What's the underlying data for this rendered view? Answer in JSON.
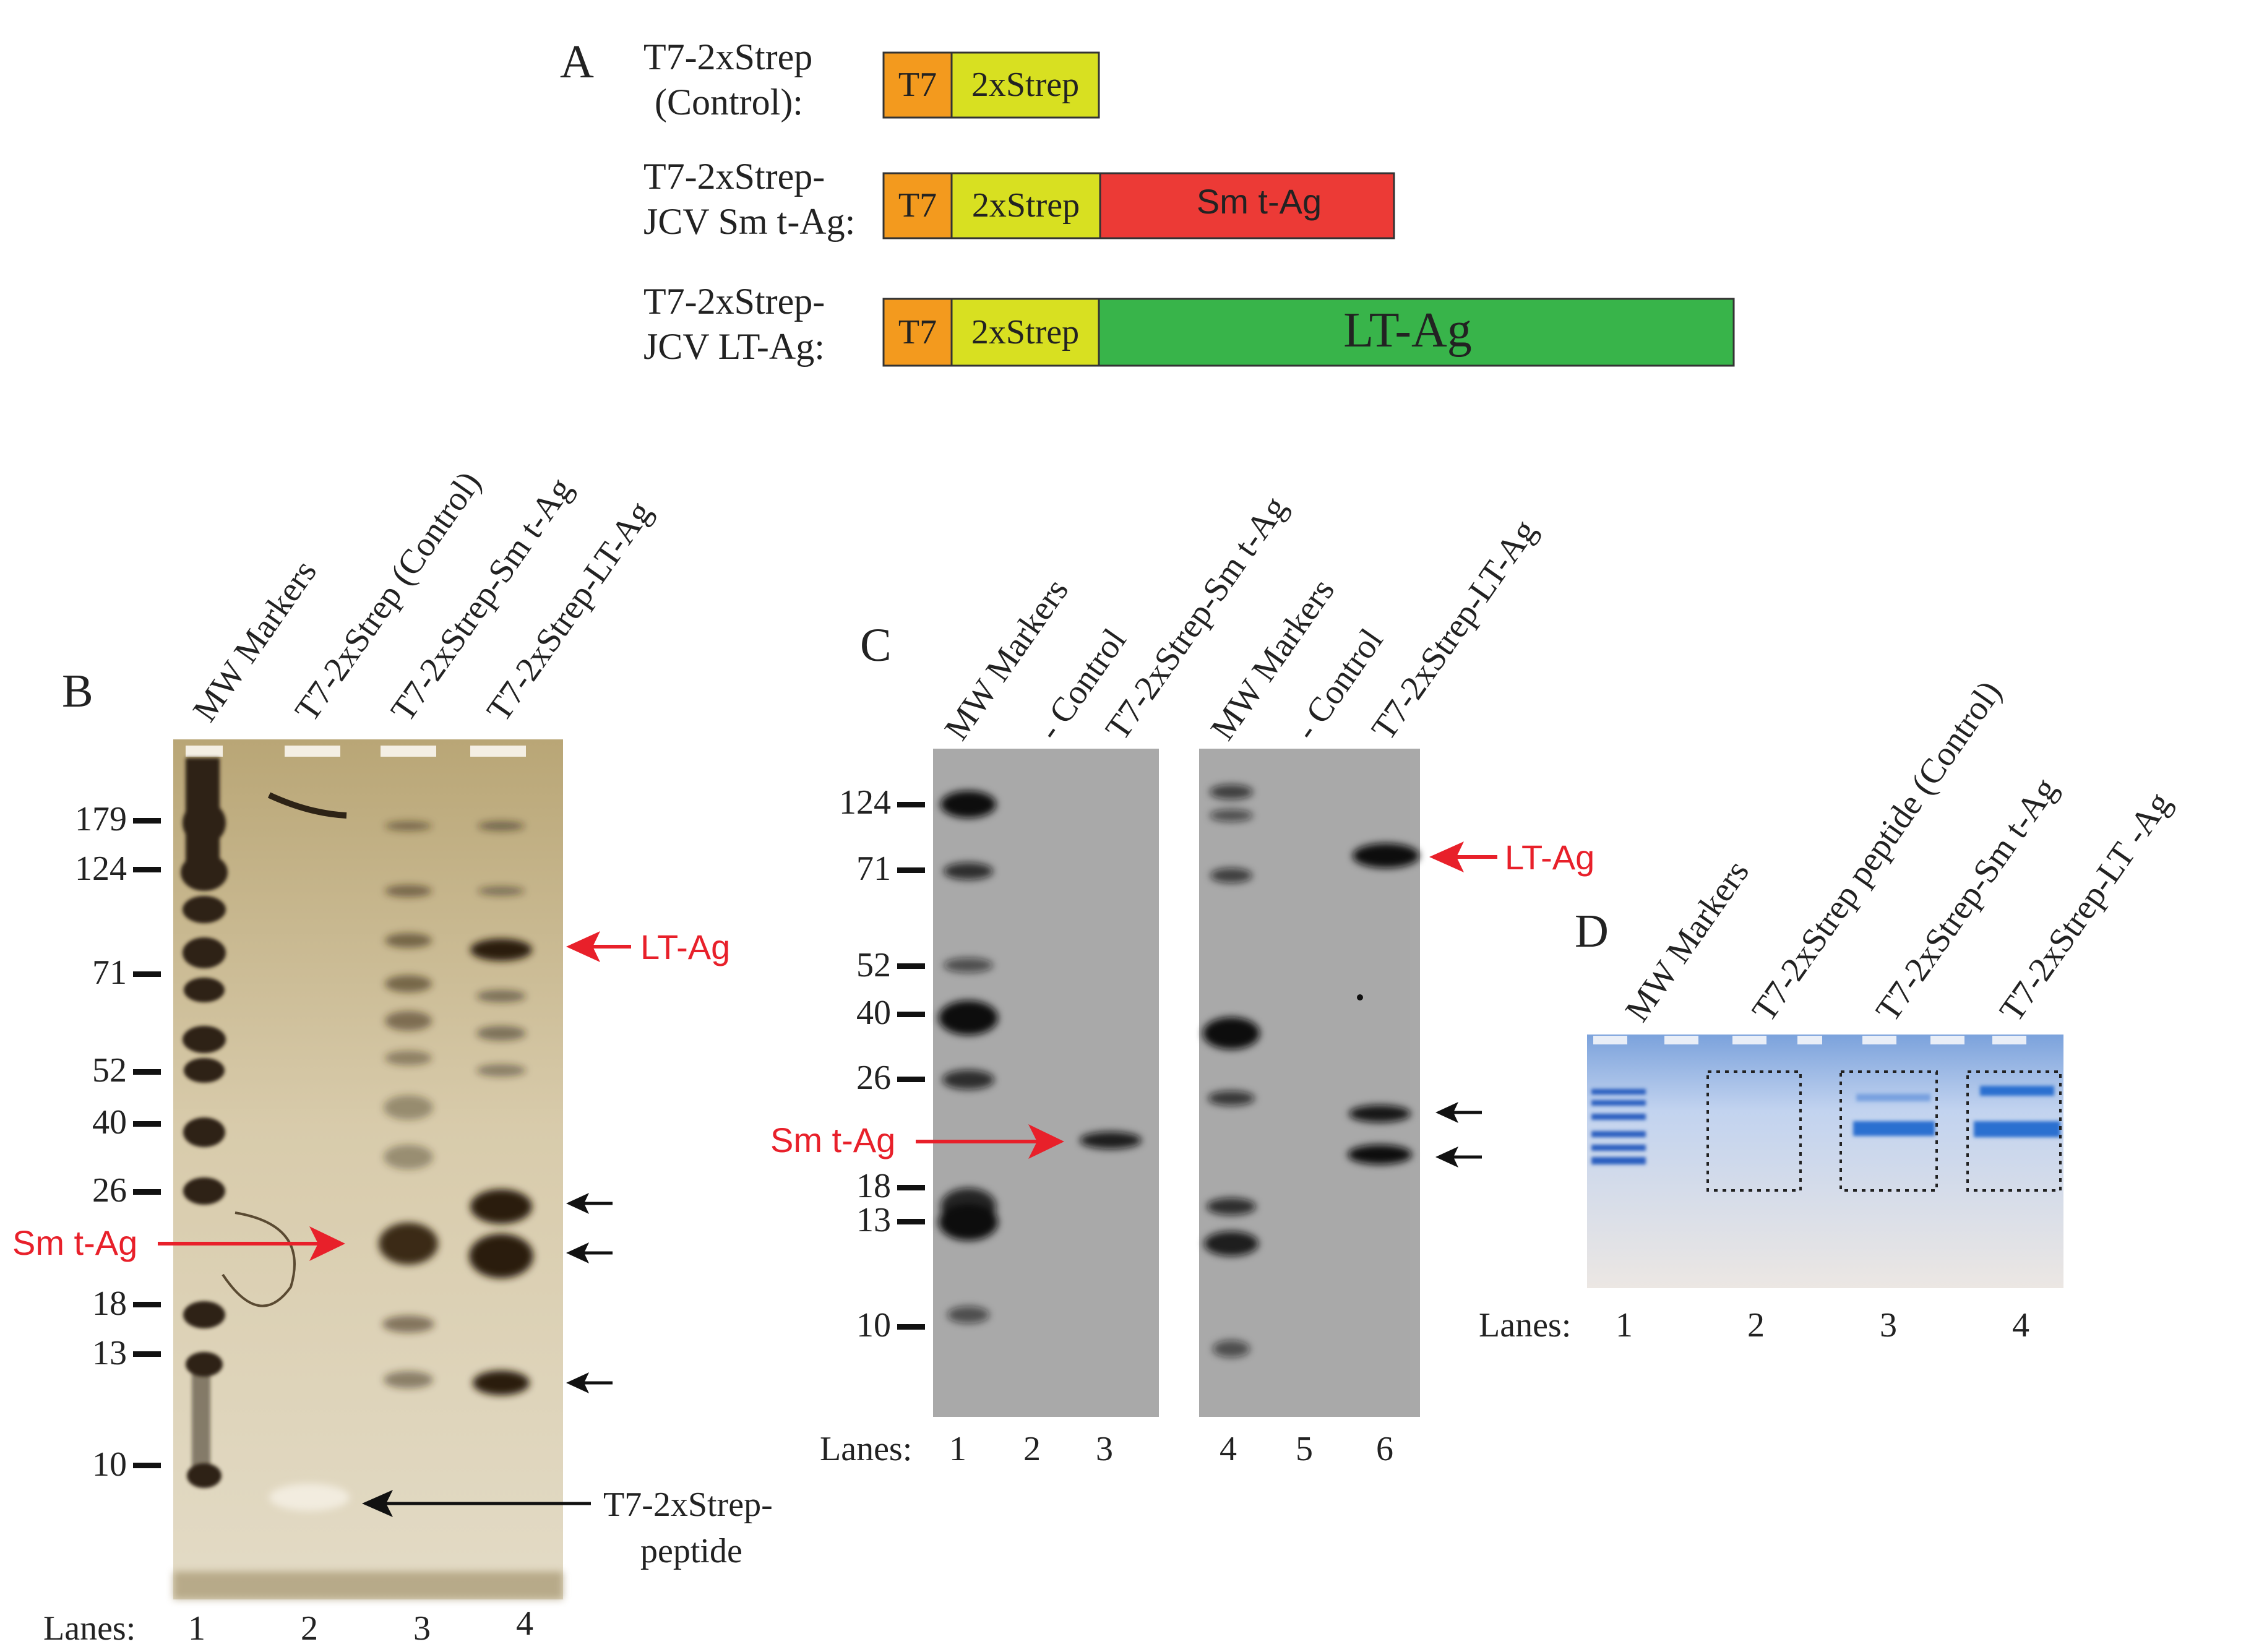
{
  "panels": {
    "a": {
      "letter": "A",
      "constructs": [
        {
          "name_line1": "T7-2xStrep",
          "name_line2": "(Control):",
          "t7_label": "T7",
          "strep_label": "2xStrep",
          "insert_label": ""
        },
        {
          "name_line1": "T7-2xStrep-",
          "name_line2": "JCV Sm t-Ag:",
          "t7_label": "T7",
          "strep_label": "2xStrep",
          "insert_label": "Sm t-Ag"
        },
        {
          "name_line1": "T7-2xStrep-",
          "name_line2": "JCV LT-Ag:",
          "t7_label": "T7",
          "strep_label": "2xStrep",
          "insert_label": "LT-Ag"
        }
      ]
    },
    "b": {
      "letter": "B",
      "lane_headers": [
        "MW Markers",
        "T7-2xStrep (Control)",
        "T7-2xStrep-Sm t-Ag",
        "T7-2xStrep-LT-Ag"
      ],
      "mw_markers": [
        "179",
        "124",
        "71",
        "52",
        "40",
        "26",
        "18",
        "13",
        "10"
      ],
      "lanes_prefix": "Lanes:",
      "lane_numbers": [
        "1",
        "2",
        "3",
        "4"
      ],
      "annotations": {
        "lt_ag": "LT-Ag",
        "sm_t_ag": "Sm t-Ag",
        "peptide_line1": "T7-2xStrep-",
        "peptide_line2": "peptide"
      }
    },
    "c": {
      "letter": "C",
      "lane_headers": [
        "MW Markers",
        "- Control",
        "T7-2xStrep-Sm t-Ag",
        "MW Markers",
        "- Control",
        "T7-2xStrep-LT-Ag"
      ],
      "mw_markers": [
        "124",
        "71",
        "52",
        "40",
        "26",
        "18",
        "13",
        "10"
      ],
      "lanes_prefix": "Lanes:",
      "lane_numbers": [
        "1",
        "2",
        "3",
        "4",
        "5",
        "6"
      ],
      "annotations": {
        "lt_ag": "LT-Ag",
        "sm_t_ag": "Sm t-Ag"
      }
    },
    "d": {
      "letter": "D",
      "lane_headers": [
        "MW Markers",
        "T7-2xStrep peptide (Control)",
        "T7-2xStrep-Sm t-Ag",
        "T7-2xStrep-LT -Ag"
      ],
      "lanes_prefix": "Lanes:",
      "lane_numbers": [
        "1",
        "2",
        "3",
        "4"
      ]
    }
  },
  "colors": {
    "t7_box": "#f39a1e",
    "strep_box": "#d8e021",
    "sm_t_ag_box": "#ec3a36",
    "lt_ag_box": "#38b44a",
    "annotation_red": "#e8202a",
    "silver_gel": "#c9b98f",
    "western_blot": "#a9a9a9",
    "coomassie_gel": "#c9d6ec",
    "coomassie_band": "#2a6fd0"
  }
}
